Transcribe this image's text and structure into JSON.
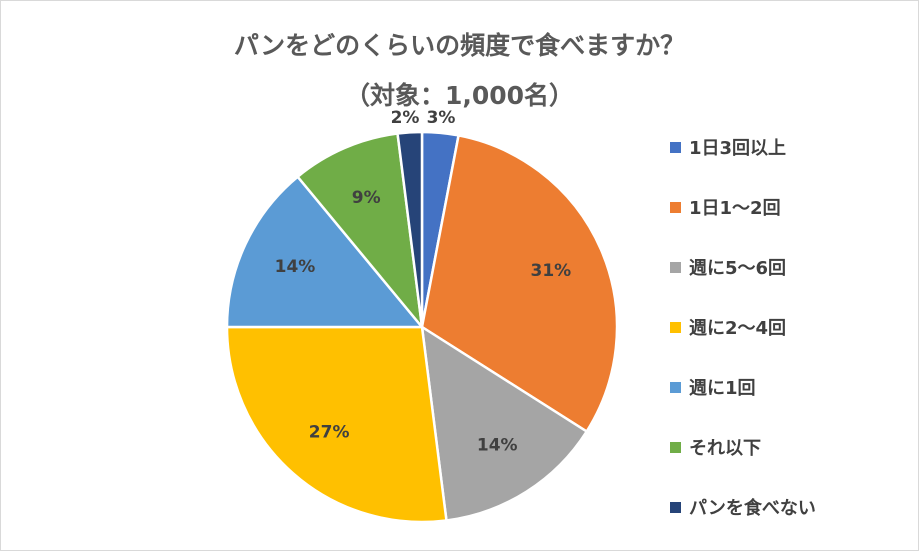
{
  "chart_data": {
    "type": "pie",
    "title": "パンをどのくらいの頻度で食べますか？",
    "subtitle": "（対象：1,000名）",
    "categories": [
      "1日3回以上",
      "1日1～2回",
      "週に5～6回",
      "週に2～4回",
      "週に1回",
      "それ以下",
      "パンを食べない"
    ],
    "values": [
      3,
      31,
      14,
      27,
      14,
      9,
      2
    ],
    "labels": [
      "3%",
      "31%",
      "14%",
      "27%",
      "14%",
      "9%",
      "2%"
    ],
    "colors": [
      "#4472C4",
      "#ED7D31",
      "#A5A5A5",
      "#FFC000",
      "#5B9BD5",
      "#70AD47",
      "#264478"
    ],
    "start": "top, clockwise",
    "legend_position": "right"
  }
}
